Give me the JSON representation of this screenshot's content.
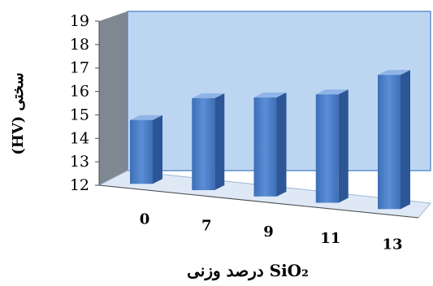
{
  "chart_data": {
    "type": "bar",
    "categories": [
      "0",
      "7",
      "9",
      "11",
      "13"
    ],
    "values": [
      14.1,
      15.3,
      15.6,
      16.0,
      17.1
    ],
    "title": "",
    "xlabel": "SiO₂ درصد وزنی",
    "ylabel": "سختی (HV)",
    "ylim": [
      12,
      19
    ],
    "yticks": [
      "12",
      "13",
      "14",
      "15",
      "16",
      "17",
      "18",
      "19"
    ],
    "grid": false,
    "legend": "none",
    "colors": {
      "bar_front": "#4a7ec7",
      "bar_side": "#2c5696",
      "bar_top": "#8fb4e6",
      "back_wall": "#bcd6f2",
      "side_wall": "#7f8791",
      "floor": "#d8e6f6"
    }
  }
}
